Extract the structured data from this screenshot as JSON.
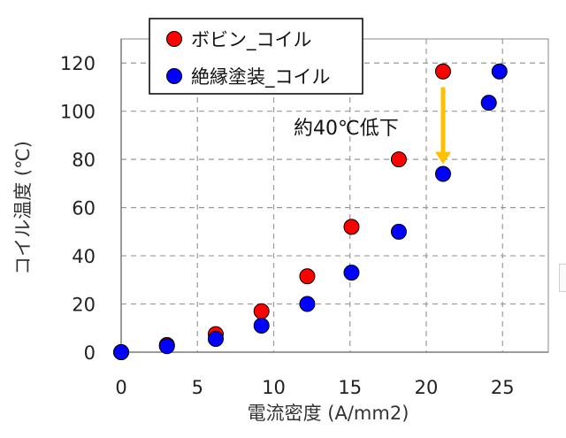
{
  "chart_data": {
    "type": "scatter",
    "xlabel": "電流密度 (A/mm2)",
    "ylabel": "コイル温度 (℃)",
    "xlim": [
      0,
      28
    ],
    "ylim": [
      0,
      130
    ],
    "x_ticks": [
      0,
      5,
      10,
      15,
      20,
      25
    ],
    "y_ticks": [
      0,
      20,
      40,
      60,
      80,
      100,
      120
    ],
    "grid": true,
    "legend": "top-left",
    "series": [
      {
        "name": "ボビン_コイル",
        "color": "#ff0000",
        "points": [
          [
            0,
            0
          ],
          [
            3,
            3
          ],
          [
            6.2,
            7.5
          ],
          [
            9.2,
            17
          ],
          [
            12.2,
            31.5
          ],
          [
            15.1,
            52
          ],
          [
            18.2,
            80
          ],
          [
            21.1,
            116.5
          ]
        ]
      },
      {
        "name": "絶縁塗装_コイル",
        "color": "#0000ff",
        "points": [
          [
            0,
            0
          ],
          [
            3,
            2.5
          ],
          [
            6.2,
            5.5
          ],
          [
            9.2,
            11
          ],
          [
            12.2,
            20
          ],
          [
            15.1,
            33
          ],
          [
            18.2,
            50
          ],
          [
            21.1,
            74
          ],
          [
            24.1,
            103.5
          ],
          [
            24.8,
            116.5
          ]
        ]
      }
    ],
    "annotation": {
      "text": "約40℃低下",
      "arrow_color": "#ffc000",
      "arrow_from": [
        21.1,
        110
      ],
      "arrow_to": [
        21.1,
        78
      ]
    }
  }
}
